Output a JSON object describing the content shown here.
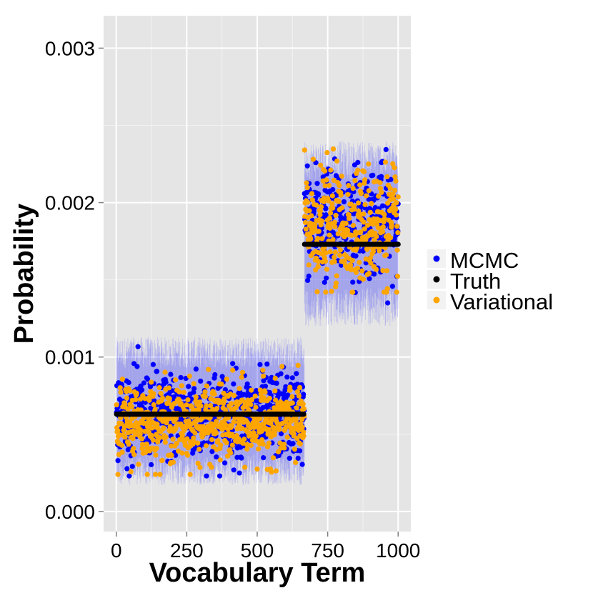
{
  "chart_data": {
    "type": "scatter",
    "title": "",
    "xlabel": "Vocabulary Term",
    "ylabel": "Probability",
    "xlim": [
      -45,
      1045
    ],
    "ylim": [
      -0.00013,
      0.00321
    ],
    "x_ticks": [
      0,
      250,
      500,
      750,
      1000
    ],
    "x_tick_labels": [
      "0",
      "250",
      "500",
      "750",
      "1000"
    ],
    "y_ticks": [
      0.0,
      0.001,
      0.002,
      0.003
    ],
    "y_tick_labels": [
      "0.000",
      "0.001",
      "0.002",
      "0.003"
    ],
    "grid": true,
    "legend_position": "right",
    "n_terms": 1000,
    "change_point": 667,
    "error_band": {
      "series": "MCMC",
      "color": "#0000ff",
      "opacity": 0.12,
      "segments": [
        {
          "x_start": 1,
          "x_end": 667,
          "lower": 0.00025,
          "upper": 0.00105
        },
        {
          "x_start": 668,
          "x_end": 1000,
          "lower": 0.0013,
          "upper": 0.0023
        }
      ]
    },
    "series": [
      {
        "name": "MCMC",
        "color": "#0000ff",
        "description": "per-term posterior mean estimates",
        "segments": [
          {
            "x_start": 1,
            "x_end": 667,
            "center": 0.00062,
            "spread_min": 0.00023,
            "spread_max": 0.00108
          },
          {
            "x_start": 668,
            "x_end": 1000,
            "center": 0.00188,
            "spread_min": 0.00132,
            "spread_max": 0.00238
          }
        ]
      },
      {
        "name": "Truth",
        "color": "#000000",
        "segments": [
          {
            "x_start": 1,
            "x_end": 667,
            "value": 0.00063
          },
          {
            "x_start": 668,
            "x_end": 1000,
            "value": 0.00173
          }
        ]
      },
      {
        "name": "Variational",
        "color": "#ffa500",
        "segments": [
          {
            "x_start": 1,
            "x_end": 667,
            "center": 0.00058,
            "spread_min": 0.00024,
            "spread_max": 0.00098
          },
          {
            "x_start": 668,
            "x_end": 1000,
            "center": 0.00185,
            "spread_min": 0.00142,
            "spread_max": 0.00256
          }
        ]
      }
    ]
  },
  "colors": {
    "panel_background": "#e5e5e5",
    "grid_major": "#ffffff",
    "grid_minor": "#f2f2f2",
    "mcmc": "#0000ff",
    "truth": "#000000",
    "variational": "#ffa500"
  }
}
